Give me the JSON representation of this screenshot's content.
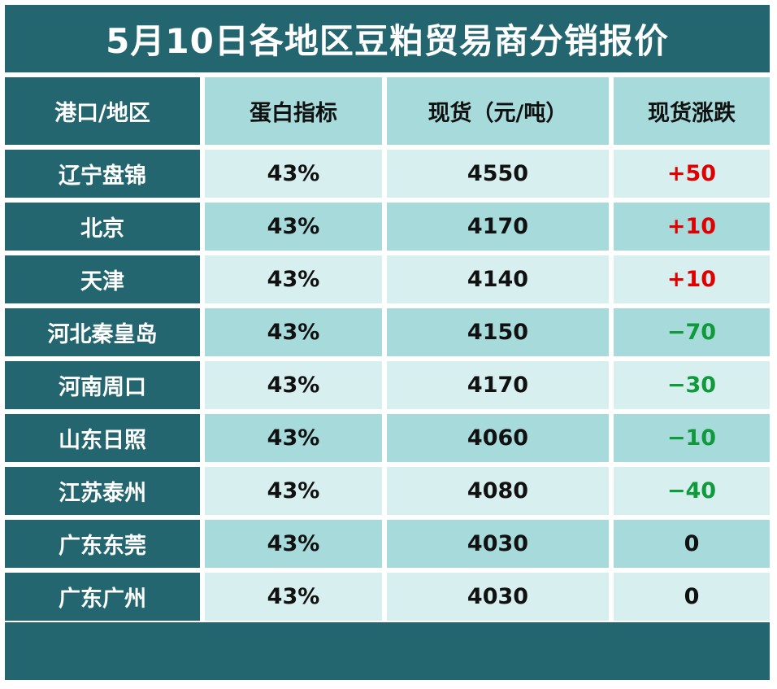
{
  "title": "5月10日各地区豆粕贸易商分销报价",
  "headers": [
    "港口/地区",
    "蛋白指标",
    "现货（元/吨）",
    "现货涨跌"
  ],
  "rows": [
    {
      "region": "辽宁盘锦",
      "protein": "43%",
      "price": "4550",
      "change": "+50",
      "trend": "up"
    },
    {
      "region": "北京",
      "protein": "43%",
      "price": "4170",
      "change": "+10",
      "trend": "up"
    },
    {
      "region": "天津",
      "protein": "43%",
      "price": "4140",
      "change": "+10",
      "trend": "up"
    },
    {
      "region": "河北秦皇岛",
      "protein": "43%",
      "price": "4150",
      "change": "−70",
      "trend": "down"
    },
    {
      "region": "河南周口",
      "protein": "43%",
      "price": "4170",
      "change": "−30",
      "trend": "down"
    },
    {
      "region": "山东日照",
      "protein": "43%",
      "price": "4060",
      "change": "−10",
      "trend": "down"
    },
    {
      "region": "江苏泰州",
      "protein": "43%",
      "price": "4080",
      "change": "−40",
      "trend": "down"
    },
    {
      "region": "广东东莞",
      "protein": "43%",
      "price": "4030",
      "change": "0",
      "trend": "flat"
    },
    {
      "region": "广东广州",
      "protein": "43%",
      "price": "4030",
      "change": "0",
      "trend": "flat"
    }
  ],
  "colors": {
    "dark_teal": "#236670",
    "light_teal": "#a6dadb",
    "pale_teal": "#d8efef",
    "rise": "#e00000",
    "fall": "#109a3c"
  }
}
